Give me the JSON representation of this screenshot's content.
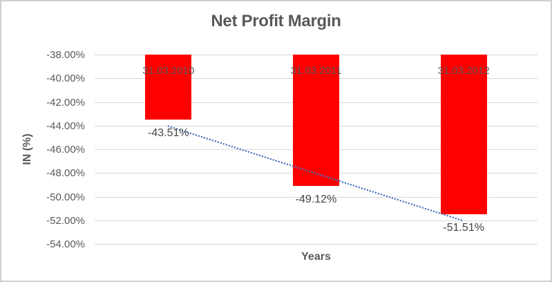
{
  "frame": {
    "background_color": "#FFFFFF",
    "border_color": "#D0CECE"
  },
  "chart_data": {
    "type": "bar",
    "title": "Net Profit Margin",
    "xlabel": "Years",
    "ylabel": "IN (%)",
    "categories": [
      "31.03.2010",
      "31.03.2011",
      "31.03.2012"
    ],
    "series": [
      {
        "name": "Net Profit Margin",
        "values": [
          -43.51,
          -49.12,
          -51.51
        ]
      }
    ],
    "data_labels": [
      "-43.51%",
      "-49.12%",
      "-51.51%"
    ],
    "y_tick_labels": [
      "-38.00%",
      "-40.00%",
      "-42.00%",
      "-44.00%",
      "-46.00%",
      "-48.00%",
      "-50.00%",
      "-52.00%",
      "-54.00%"
    ],
    "y_tick_values": [
      -38,
      -40,
      -42,
      -44,
      -46,
      -48,
      -50,
      -52,
      -54
    ],
    "ylim": [
      -54,
      -38
    ],
    "grid": true,
    "legend": "none",
    "bar_color": "#FF0000",
    "gridline_color": "#D9D9D9",
    "axis_text_color": "#595959",
    "data_label_color": "#454545",
    "trendline": {
      "type": "linear",
      "style": "dotted",
      "color": "#4472C4",
      "start_value": -44.05,
      "end_value": -52.05
    }
  }
}
